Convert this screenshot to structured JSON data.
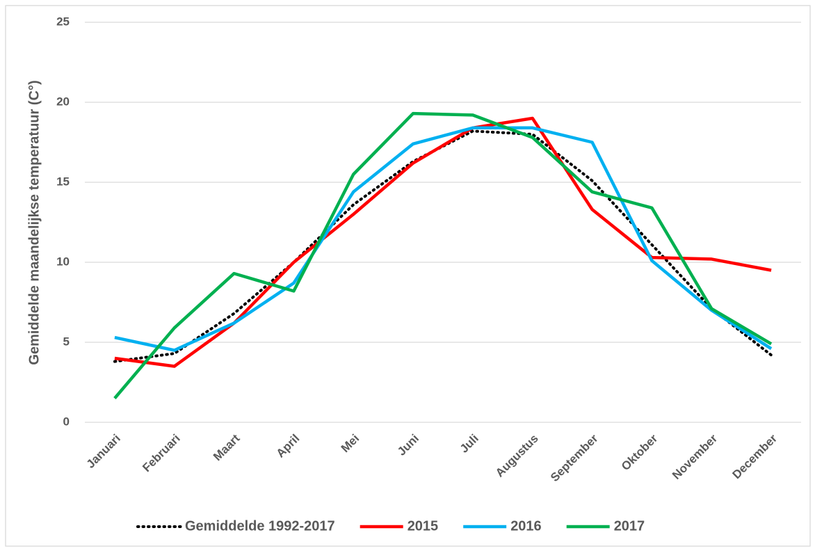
{
  "chart_data": {
    "type": "line",
    "y_label": "Gemiddelde maandelijkse temperatuur (C°)",
    "categories": [
      "Januari",
      "Februari",
      "Maart",
      "April",
      "Mei",
      "Juni",
      "Juli",
      "Augustus",
      "September",
      "Oktober",
      "November",
      "December"
    ],
    "series": [
      {
        "name": "Gemiddelde 1992-2017",
        "color": "#000000",
        "style": "dotted",
        "values": [
          3.8,
          4.3,
          6.8,
          10.0,
          13.6,
          16.3,
          18.2,
          18.0,
          15.1,
          11.1,
          7.1,
          4.2
        ]
      },
      {
        "name": "2015",
        "color": "#ff0000",
        "style": "solid",
        "values": [
          4.0,
          3.5,
          6.2,
          10.0,
          13.0,
          16.2,
          18.4,
          19.0,
          13.3,
          10.3,
          10.2,
          9.5
        ]
      },
      {
        "name": "2016",
        "color": "#00b0f0",
        "style": "solid",
        "values": [
          5.3,
          4.5,
          6.2,
          8.7,
          14.4,
          17.4,
          18.4,
          18.4,
          17.5,
          10.1,
          7.0,
          4.6
        ]
      },
      {
        "name": "2017",
        "color": "#00b050",
        "style": "solid",
        "values": [
          1.5,
          5.9,
          9.3,
          8.2,
          15.5,
          19.3,
          19.2,
          17.8,
          14.4,
          13.4,
          7.1,
          4.9
        ]
      }
    ],
    "ylim": [
      0,
      25
    ],
    "yticks": [
      0,
      5,
      10,
      15,
      20,
      25
    ],
    "grid": true,
    "legend": "bottom"
  }
}
